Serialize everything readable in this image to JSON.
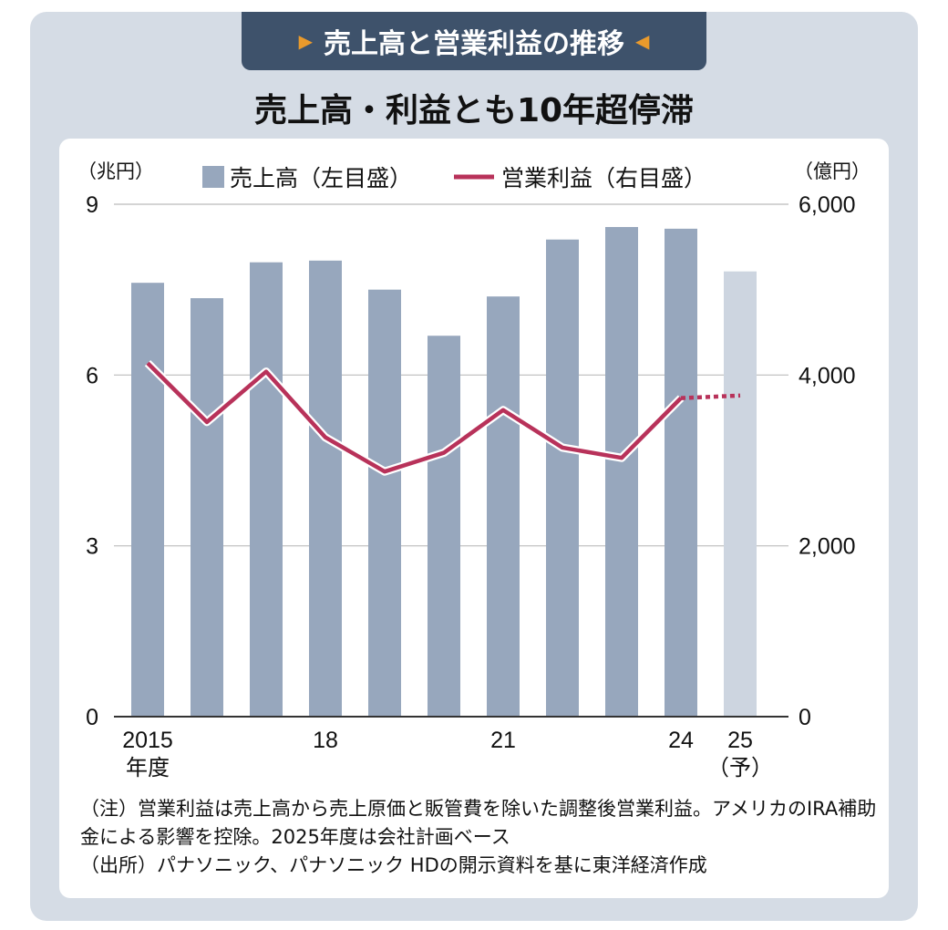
{
  "header": {
    "tab_title": "売上高と営業利益の推移",
    "subtitle": "売上高・利益とも10年超停滞"
  },
  "chart_data": {
    "type": "bar+line",
    "categories": [
      "2015",
      "2016",
      "2017",
      "2018",
      "2019",
      "2020",
      "2021",
      "2022",
      "2023",
      "2024",
      "2025"
    ],
    "x_tick_labels": [
      {
        "index": 0,
        "label": "2015",
        "sub": "年度"
      },
      {
        "index": 3,
        "label": "18",
        "sub": ""
      },
      {
        "index": 6,
        "label": "21",
        "sub": ""
      },
      {
        "index": 9,
        "label": "24",
        "sub": ""
      },
      {
        "index": 10,
        "label": "25",
        "sub": "（予）"
      }
    ],
    "series": [
      {
        "name": "売上高（左目盛）",
        "type": "bar",
        "axis": "left",
        "color": "#97a7bd",
        "forecast_color": "#cdd5e0",
        "values": [
          7.62,
          7.35,
          7.98,
          8.01,
          7.5,
          6.69,
          7.38,
          8.38,
          8.6,
          8.57,
          7.82
        ]
      },
      {
        "name": "営業利益（右目盛）",
        "type": "line",
        "axis": "right",
        "color": "#b8325a",
        "values": [
          4140,
          3450,
          4040,
          3270,
          2870,
          3090,
          3590,
          3150,
          3030,
          3730,
          3760
        ]
      }
    ],
    "forecast_index": 10,
    "left_axis": {
      "unit": "（兆円）",
      "ylim": [
        0,
        9
      ],
      "ticks": [
        0,
        3,
        6,
        9
      ],
      "tick_labels": [
        "0",
        "3",
        "6",
        "9"
      ]
    },
    "right_axis": {
      "unit": "（億円）",
      "ylim": [
        0,
        6000
      ],
      "ticks": [
        0,
        2000,
        4000,
        6000
      ],
      "tick_labels": [
        "0",
        "2,000",
        "4,000",
        "6,000"
      ]
    },
    "grid": true,
    "legend_placement": "top-center"
  },
  "notes": [
    "（注）営業利益は売上高から売上原価と販管費を除いた調整後営業利益。アメリカのIRA補助金による影響を控除。2025年度は会社計画ベース",
    "（出所）パナソニック、パナソニック HDの開示資料を基に東洋経済作成"
  ]
}
